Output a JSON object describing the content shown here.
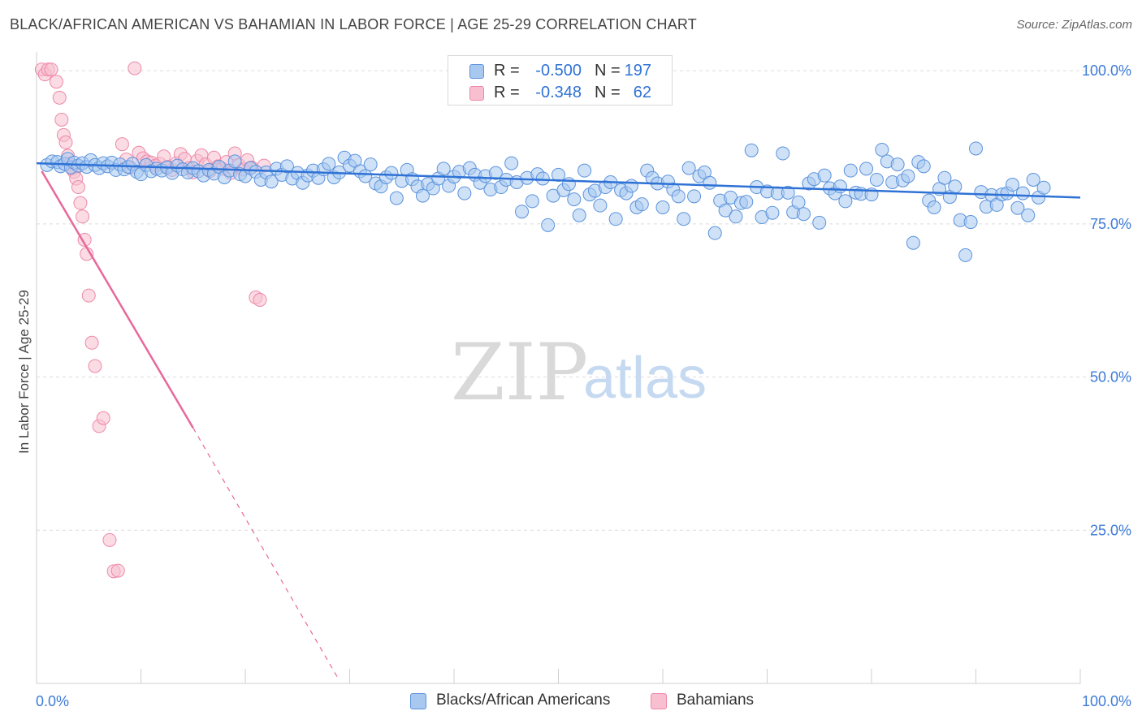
{
  "title": "BLACK/AFRICAN AMERICAN VS BAHAMIAN IN LABOR FORCE | AGE 25-29 CORRELATION CHART",
  "source": "Source: ZipAtlas.com",
  "watermark": {
    "zip": "ZIP",
    "atlas": "atlas"
  },
  "colors": {
    "blue_fill": "#a8c8f0",
    "blue_stroke": "#5b93dc",
    "blue_line": "#2f72d6",
    "pink_fill": "#f8bfd0",
    "pink_stroke": "#ee88a8",
    "pink_line": "#e8689a",
    "axis_label": "#3d7bd8",
    "grid": "#dcdcdc"
  },
  "stats": {
    "rows": [
      {
        "series": "Blacks/African Americans",
        "r_label": "R =",
        "r": "-0.500",
        "n_label": "N =",
        "n": "197"
      },
      {
        "series": "Bahamians",
        "r_label": "R =",
        "r": "-0.348",
        "n_label": "N =",
        "n": "62"
      }
    ]
  },
  "legend": {
    "blue": "Blacks/African Americans",
    "pink": "Bahamians"
  },
  "chart_data": {
    "type": "scatter",
    "title": "BLACK/AFRICAN AMERICAN VS BAHAMIAN IN LABOR FORCE | AGE 25-29 CORRELATION CHART",
    "xlabel": "",
    "ylabel": "In Labor Force | Age 25-29",
    "x_tick_labels": [
      "0.0%",
      "100.0%"
    ],
    "y_tick_labels": [
      "100.0%",
      "75.0%",
      "50.0%",
      "25.0%"
    ],
    "y_ticks": [
      100,
      75,
      50,
      25
    ],
    "xlim": [
      0,
      100
    ],
    "ylim": [
      0,
      102
    ],
    "grid": true,
    "legend_position": "bottom",
    "series": [
      {
        "name": "Blacks/African Americans",
        "trend": {
          "x": [
            0,
            100
          ],
          "y": [
            84.9,
            79.3
          ],
          "dashed_from": null
        },
        "points": [
          [
            1,
            84.6
          ],
          [
            1.5,
            85.2
          ],
          [
            2,
            85.1
          ],
          [
            2.3,
            84.4
          ],
          [
            2.7,
            84.8
          ],
          [
            3,
            85.6
          ],
          [
            3.3,
            84.2
          ],
          [
            3.6,
            85.0
          ],
          [
            4,
            84.5
          ],
          [
            4.4,
            84.9
          ],
          [
            4.8,
            84.3
          ],
          [
            5.2,
            85.4
          ],
          [
            5.6,
            84.6
          ],
          [
            6,
            84.1
          ],
          [
            6.4,
            84.9
          ],
          [
            6.8,
            84.4
          ],
          [
            7.2,
            85.0
          ],
          [
            7.6,
            83.8
          ],
          [
            8,
            84.7
          ],
          [
            8.4,
            83.9
          ],
          [
            8.8,
            84.3
          ],
          [
            9.2,
            84.8
          ],
          [
            9.6,
            83.5
          ],
          [
            10,
            83.1
          ],
          [
            10.5,
            84.6
          ],
          [
            11,
            83.6
          ],
          [
            11.5,
            84.0
          ],
          [
            12,
            83.7
          ],
          [
            12.5,
            84.2
          ],
          [
            13,
            83.3
          ],
          [
            13.5,
            84.5
          ],
          [
            14,
            83.9
          ],
          [
            14.5,
            83.4
          ],
          [
            15,
            84.1
          ],
          [
            15.5,
            83.6
          ],
          [
            16,
            82.9
          ],
          [
            16.5,
            83.8
          ],
          [
            17,
            83.2
          ],
          [
            17.5,
            84.3
          ],
          [
            18,
            82.6
          ],
          [
            18.5,
            83.7
          ],
          [
            19,
            85.2
          ],
          [
            19.5,
            83.1
          ],
          [
            20,
            82.8
          ],
          [
            20.5,
            84.1
          ],
          [
            21,
            83.5
          ],
          [
            21.5,
            82.2
          ],
          [
            22,
            83.4
          ],
          [
            22.5,
            81.9
          ],
          [
            23,
            84.0
          ],
          [
            23.5,
            83.0
          ],
          [
            24,
            84.4
          ],
          [
            24.5,
            82.4
          ],
          [
            25,
            83.3
          ],
          [
            25.5,
            81.7
          ],
          [
            26,
            82.9
          ],
          [
            26.5,
            83.7
          ],
          [
            27,
            82.5
          ],
          [
            27.5,
            83.9
          ],
          [
            28,
            84.8
          ],
          [
            28.5,
            82.6
          ],
          [
            29,
            83.4
          ],
          [
            29.5,
            85.8
          ],
          [
            30,
            84.5
          ],
          [
            30.5,
            85.3
          ],
          [
            31,
            83.6
          ],
          [
            31.5,
            82.8
          ],
          [
            32,
            84.7
          ],
          [
            32.5,
            81.6
          ],
          [
            33,
            81.1
          ],
          [
            33.5,
            82.6
          ],
          [
            34,
            83.3
          ],
          [
            34.5,
            79.2
          ],
          [
            35,
            82.0
          ],
          [
            35.5,
            83.8
          ],
          [
            36,
            82.3
          ],
          [
            36.5,
            81.1
          ],
          [
            37,
            79.6
          ],
          [
            37.5,
            81.5
          ],
          [
            38,
            80.8
          ],
          [
            38.5,
            82.4
          ],
          [
            39,
            84.0
          ],
          [
            39.5,
            81.2
          ],
          [
            40,
            82.7
          ],
          [
            40.5,
            83.5
          ],
          [
            41,
            80.0
          ],
          [
            41.5,
            84.1
          ],
          [
            42,
            83.0
          ],
          [
            42.5,
            81.7
          ],
          [
            43,
            82.8
          ],
          [
            43.5,
            80.6
          ],
          [
            44,
            83.3
          ],
          [
            44.5,
            81.0
          ],
          [
            45,
            82.2
          ],
          [
            45.5,
            84.9
          ],
          [
            46,
            81.8
          ],
          [
            46.5,
            77.0
          ],
          [
            47,
            82.5
          ],
          [
            47.5,
            78.7
          ],
          [
            48,
            83.1
          ],
          [
            48.5,
            82.4
          ],
          [
            49,
            74.8
          ],
          [
            49.5,
            79.6
          ],
          [
            50,
            83.0
          ],
          [
            50.5,
            80.5
          ],
          [
            51,
            81.5
          ],
          [
            51.5,
            79.0
          ],
          [
            52,
            76.4
          ],
          [
            52.5,
            83.7
          ],
          [
            53,
            79.8
          ],
          [
            53.5,
            80.4
          ],
          [
            54,
            78.0
          ],
          [
            54.5,
            81.0
          ],
          [
            55,
            81.8
          ],
          [
            55.5,
            75.8
          ],
          [
            56,
            80.5
          ],
          [
            56.5,
            80.0
          ],
          [
            57,
            81.2
          ],
          [
            57.5,
            77.7
          ],
          [
            58,
            78.2
          ],
          [
            58.5,
            83.7
          ],
          [
            59,
            82.5
          ],
          [
            59.5,
            81.6
          ],
          [
            60,
            77.7
          ],
          [
            60.5,
            81.9
          ],
          [
            61,
            80.6
          ],
          [
            61.5,
            79.5
          ],
          [
            62,
            75.8
          ],
          [
            62.5,
            84.1
          ],
          [
            63,
            79.5
          ],
          [
            63.5,
            82.8
          ],
          [
            64,
            83.4
          ],
          [
            64.5,
            81.7
          ],
          [
            65,
            73.5
          ],
          [
            65.5,
            78.8
          ],
          [
            66,
            77.2
          ],
          [
            66.5,
            79.3
          ],
          [
            67,
            76.2
          ],
          [
            67.5,
            78.4
          ],
          [
            68,
            78.6
          ],
          [
            68.5,
            87.0
          ],
          [
            69,
            81.0
          ],
          [
            69.5,
            76.1
          ],
          [
            70,
            80.3
          ],
          [
            70.5,
            76.8
          ],
          [
            71,
            80.0
          ],
          [
            71.5,
            86.5
          ],
          [
            72,
            80.1
          ],
          [
            72.5,
            76.9
          ],
          [
            73,
            78.5
          ],
          [
            73.5,
            76.6
          ],
          [
            74,
            81.6
          ],
          [
            74.5,
            82.3
          ],
          [
            75,
            75.2
          ],
          [
            75.5,
            82.9
          ],
          [
            76,
            80.8
          ],
          [
            76.5,
            80.0
          ],
          [
            77,
            81.1
          ],
          [
            77.5,
            78.7
          ],
          [
            78,
            83.7
          ],
          [
            78.5,
            80.1
          ],
          [
            79,
            79.9
          ],
          [
            79.5,
            84.0
          ],
          [
            80,
            79.8
          ],
          [
            80.5,
            82.2
          ],
          [
            81,
            87.1
          ],
          [
            81.5,
            85.2
          ],
          [
            82,
            81.8
          ],
          [
            82.5,
            84.7
          ],
          [
            83,
            82.1
          ],
          [
            83.5,
            82.8
          ],
          [
            84,
            71.9
          ],
          [
            84.5,
            85.1
          ],
          [
            85,
            84.4
          ],
          [
            85.5,
            78.8
          ],
          [
            86,
            77.7
          ],
          [
            86.5,
            80.7
          ],
          [
            87,
            82.5
          ],
          [
            87.5,
            79.4
          ],
          [
            88,
            81.1
          ],
          [
            88.5,
            75.6
          ],
          [
            89,
            69.9
          ],
          [
            89.5,
            75.3
          ],
          [
            90,
            87.3
          ],
          [
            90.5,
            80.2
          ],
          [
            91,
            77.8
          ],
          [
            91.5,
            79.7
          ],
          [
            92,
            78.1
          ],
          [
            92.5,
            79.8
          ],
          [
            93,
            80.0
          ],
          [
            93.5,
            81.4
          ],
          [
            94,
            77.6
          ],
          [
            94.5,
            80.0
          ],
          [
            95,
            76.4
          ],
          [
            95.5,
            82.2
          ],
          [
            96,
            79.3
          ],
          [
            96.5,
            80.9
          ]
        ]
      },
      {
        "name": "Bahamians",
        "trend": {
          "x": [
            0.5,
            15,
            29
          ],
          "y": [
            83.6,
            41.7,
            0.5
          ],
          "dashed_from": 15
        },
        "points": [
          [
            0.5,
            100.2
          ],
          [
            0.8,
            99.4
          ],
          [
            1.1,
            100.2
          ],
          [
            1.4,
            100.2
          ],
          [
            1.9,
            98.2
          ],
          [
            2.2,
            95.6
          ],
          [
            2.4,
            92.0
          ],
          [
            2.6,
            89.5
          ],
          [
            2.8,
            88.3
          ],
          [
            3,
            86.1
          ],
          [
            3.2,
            84.8
          ],
          [
            3.4,
            84.0
          ],
          [
            3.6,
            83.5
          ],
          [
            3.8,
            82.4
          ],
          [
            4,
            81.0
          ],
          [
            4.2,
            78.4
          ],
          [
            4.4,
            76.2
          ],
          [
            4.6,
            72.4
          ],
          [
            4.8,
            70.1
          ],
          [
            5,
            63.3
          ],
          [
            5.3,
            55.6
          ],
          [
            5.6,
            51.8
          ],
          [
            6,
            42.0
          ],
          [
            6.4,
            43.3
          ],
          [
            7,
            23.4
          ],
          [
            7.4,
            18.3
          ],
          [
            7.8,
            18.4
          ],
          [
            8.2,
            88.0
          ],
          [
            8.6,
            85.5
          ],
          [
            9,
            84.2
          ],
          [
            9.4,
            100.4
          ],
          [
            9.8,
            86.6
          ],
          [
            10.2,
            85.7
          ],
          [
            10.6,
            85.2
          ],
          [
            11,
            85.0
          ],
          [
            11.4,
            84.5
          ],
          [
            11.8,
            84.8
          ],
          [
            12.2,
            86.0
          ],
          [
            12.6,
            84.3
          ],
          [
            13,
            83.8
          ],
          [
            13.4,
            84.9
          ],
          [
            13.8,
            86.4
          ],
          [
            14.2,
            85.6
          ],
          [
            14.6,
            84.1
          ],
          [
            15,
            83.4
          ],
          [
            15.4,
            85.3
          ],
          [
            15.8,
            86.2
          ],
          [
            16.2,
            84.7
          ],
          [
            16.6,
            83.6
          ],
          [
            17,
            85.8
          ],
          [
            17.4,
            84.4
          ],
          [
            17.8,
            84.0
          ],
          [
            18.2,
            85.1
          ],
          [
            18.6,
            83.3
          ],
          [
            19,
            86.5
          ],
          [
            19.4,
            84.6
          ],
          [
            19.8,
            83.9
          ],
          [
            20.2,
            85.4
          ],
          [
            20.6,
            84.2
          ],
          [
            21,
            63.0
          ],
          [
            21.4,
            62.6
          ],
          [
            21.8,
            84.5
          ]
        ]
      }
    ]
  }
}
